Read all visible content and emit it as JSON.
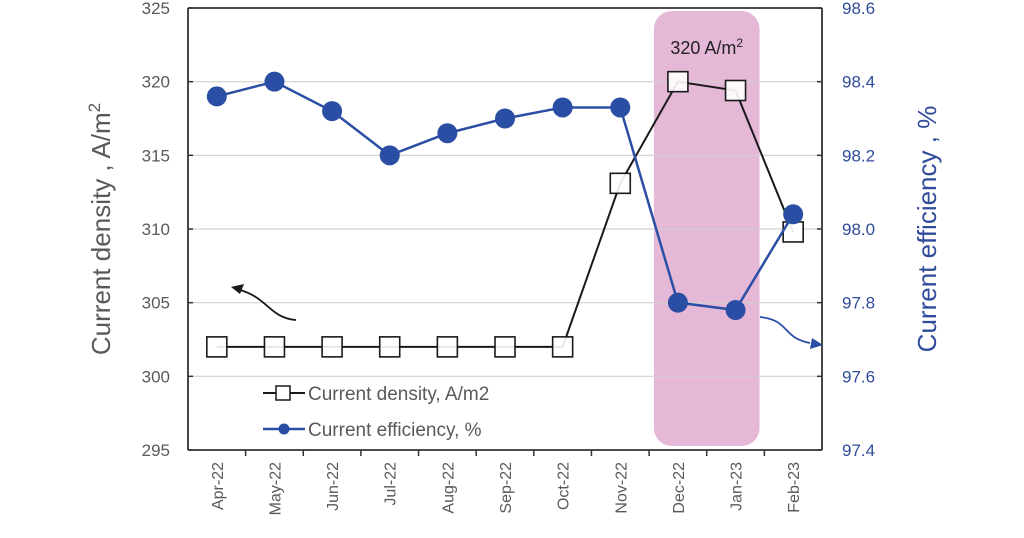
{
  "chart_data": {
    "type": "line",
    "title": "",
    "xlabel": "",
    "ylabel": "Current density , A/m",
    "ylabel_sup": "2",
    "y2label": "Current efficiency , %",
    "categories": [
      "Apr-22",
      "May-22",
      "Jun-22",
      "Jul-22",
      "Aug-22",
      "Sep-22",
      "Oct-22",
      "Nov-22",
      "Dec-22",
      "Jan-23",
      "Feb-23"
    ],
    "ylim": [
      295,
      325
    ],
    "yticks": [
      "295",
      "300",
      "305",
      "310",
      "315",
      "320",
      "325"
    ],
    "y2lim": [
      97.4,
      98.6
    ],
    "y2ticks": [
      "97.4",
      "97.6",
      "97.8",
      "98.0",
      "98.2",
      "98.4",
      "98.6"
    ],
    "grid": true,
    "legend_position": "bottom-left",
    "series": [
      {
        "name": "Current density, A/m2",
        "axis": "left",
        "marker": "open-square",
        "color": "#1a1a1a",
        "values": [
          302,
          302,
          302,
          302,
          302,
          302,
          302,
          313.1,
          320,
          319.4,
          309.8
        ]
      },
      {
        "name": "Current efficiency, %",
        "axis": "right",
        "marker": "filled-circle",
        "color": "#2a4ea3",
        "values": [
          98.36,
          98.4,
          98.32,
          98.2,
          98.26,
          98.3,
          98.33,
          98.33,
          97.8,
          97.78,
          98.04
        ]
      }
    ],
    "highlight": {
      "from": "Dec-22",
      "to": "Jan-23",
      "color": "#e6b8d8",
      "label": "320 A/m",
      "label_sup": "2"
    },
    "annotations": [
      {
        "type": "arrow",
        "direction": "left",
        "meaning": "series belongs to left axis",
        "color": "#1a1a1a"
      },
      {
        "type": "arrow",
        "direction": "right",
        "meaning": "series belongs to right axis",
        "color": "#2a4ea3"
      }
    ]
  }
}
